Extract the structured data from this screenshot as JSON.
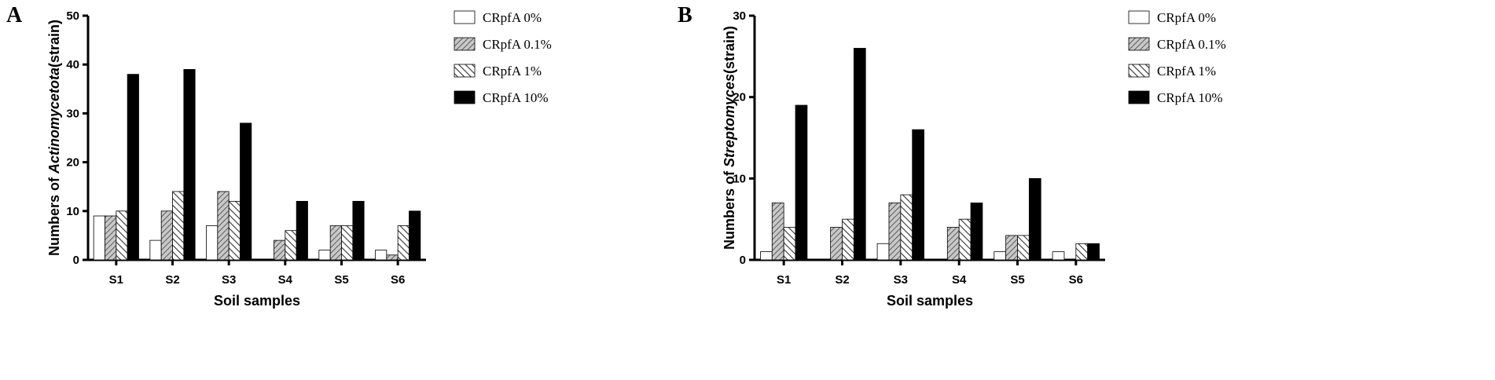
{
  "series_styles": [
    {
      "fill": "#ffffff",
      "pattern": "none"
    },
    {
      "fill": "#bdbdbd",
      "pattern": "hatch-dense"
    },
    {
      "fill": "#ffffff",
      "pattern": "hatch-sparse"
    },
    {
      "fill": "#000000",
      "pattern": "none"
    }
  ],
  "chart_data": [
    {
      "type": "bar",
      "panel_label": "A",
      "ylabel_parts": [
        "Numbers of ",
        "Actinomycetota",
        "(strain)"
      ],
      "xlabel": "Soil samples",
      "categories": [
        "S1",
        "S2",
        "S3",
        "S4",
        "S5",
        "S6"
      ],
      "ylim": [
        0,
        50
      ],
      "yticks": [
        0,
        10,
        20,
        30,
        40,
        50
      ],
      "legend_position": "top-right",
      "series": [
        {
          "name": "CRpfA 0%",
          "values": [
            9,
            4,
            7,
            0,
            2,
            2
          ]
        },
        {
          "name": "CRpfA 0.1%",
          "values": [
            9,
            10,
            14,
            4,
            7,
            1
          ]
        },
        {
          "name": "CRpfA 1%",
          "values": [
            10,
            14,
            12,
            6,
            7,
            7
          ]
        },
        {
          "name": "CRpfA 10%",
          "values": [
            38,
            39,
            28,
            12,
            12,
            10
          ]
        }
      ]
    },
    {
      "type": "bar",
      "panel_label": "B",
      "ylabel_parts": [
        "Numbers of ",
        "Streptomyces",
        "(strain)"
      ],
      "xlabel": "Soil samples",
      "categories": [
        "S1",
        "S2",
        "S3",
        "S4",
        "S5",
        "S6"
      ],
      "ylim": [
        0,
        30
      ],
      "yticks": [
        0,
        10,
        20,
        30
      ],
      "legend_position": "top-right",
      "series": [
        {
          "name": "CRpfA 0%",
          "values": [
            1,
            0,
            2,
            0,
            1,
            1
          ]
        },
        {
          "name": "CRpfA 0.1%",
          "values": [
            7,
            4,
            7,
            4,
            3,
            0
          ]
        },
        {
          "name": "CRpfA 1%",
          "values": [
            4,
            5,
            8,
            5,
            3,
            2
          ]
        },
        {
          "name": "CRpfA 10%",
          "values": [
            19,
            26,
            16,
            7,
            10,
            2
          ]
        }
      ]
    }
  ]
}
